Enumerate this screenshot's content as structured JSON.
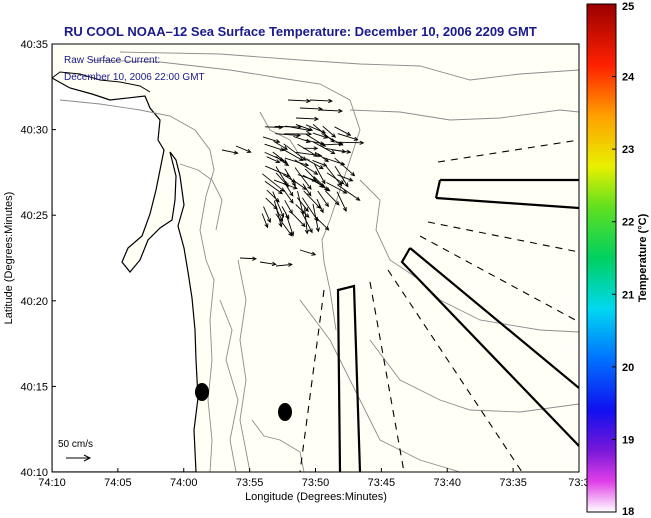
{
  "chart_data": {
    "type": "map",
    "title": "RU COOL  NOAA–12  Sea Surface Temperature:  December 10, 2006 2209 GMT",
    "subtitle_lines": [
      "Raw Surface Current:",
      "December 10, 2006 22:00 GMT"
    ],
    "xlabel": "Longitude (Degrees:Minutes)",
    "ylabel": "Latitude (Degrees:Minutes)",
    "x_ticks": [
      "74:10",
      "74:05",
      "74:00",
      "73:55",
      "73:50",
      "73:45",
      "73:40",
      "73:35",
      "73:3"
    ],
    "y_ticks": [
      "40:35",
      "40:30",
      "40:25",
      "40:20",
      "40:15",
      "40:10"
    ],
    "xlim": [
      -74.1667,
      -73.5
    ],
    "ylim": [
      40.1667,
      40.5833
    ],
    "scale_label": "50 cm/s",
    "colorbar": {
      "label": "Temperature (°C)",
      "min": 18,
      "max": 25,
      "ticks": [
        "25",
        "24",
        "23",
        "22",
        "21",
        "20",
        "19",
        "18"
      ]
    },
    "colors": {
      "title": "#1a1a8c",
      "land": "#ffffff",
      "ocean": "#fffff6",
      "contour": "#8c8c8c",
      "coast": "#000000"
    }
  }
}
